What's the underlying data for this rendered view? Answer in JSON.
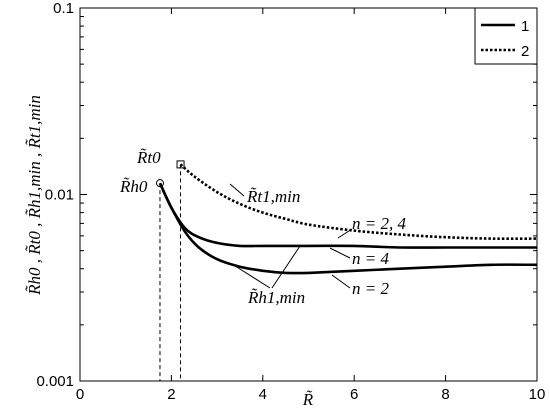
{
  "chart_data": {
    "type": "line",
    "title": "",
    "xlabel": "R̃",
    "ylabel": "R̃h0 , R̃t0 , R̃h1,min , R̃t1,min",
    "xlim": [
      0,
      10
    ],
    "ylim": [
      0.001,
      0.1
    ],
    "yscale": "log",
    "grid": false,
    "legend_position": "top-right",
    "x_ticks": [
      "0",
      "2",
      "4",
      "6",
      "8",
      "10"
    ],
    "y_ticks": [
      "0.001",
      "0.01",
      "0.1"
    ],
    "legend": [
      {
        "label": "1",
        "style": "solid"
      },
      {
        "label": "2",
        "style": "dotted"
      }
    ],
    "series": [
      {
        "name": "1",
        "style": "solid",
        "note": "n = 4",
        "x": [
          1.75,
          2.0,
          2.3,
          2.6,
          3.0,
          3.5,
          4.0,
          5.0,
          6.0,
          7.0,
          8.0,
          9.0,
          10.0
        ],
        "y": [
          0.0115,
          0.0085,
          0.0066,
          0.0059,
          0.0055,
          0.0053,
          0.0053,
          0.0053,
          0.0053,
          0.0052,
          0.0052,
          0.0052,
          0.0052
        ]
      },
      {
        "name": "1",
        "style": "solid",
        "note": "n = 2",
        "x": [
          1.75,
          2.0,
          2.3,
          2.6,
          3.0,
          3.5,
          4.0,
          4.5,
          5.0,
          6.0,
          7.0,
          8.0,
          9.0,
          10.0
        ],
        "y": [
          0.0115,
          0.0085,
          0.0063,
          0.0052,
          0.0045,
          0.0041,
          0.0039,
          0.0038,
          0.0038,
          0.0039,
          0.004,
          0.0041,
          0.0042,
          0.0042
        ]
      },
      {
        "name": "2",
        "style": "dotted",
        "note": "n = 2, 4",
        "x": [
          2.2,
          2.5,
          3.0,
          3.5,
          4.0,
          4.5,
          5.0,
          6.0,
          7.0,
          8.0,
          9.0,
          10.0
        ],
        "y": [
          0.0145,
          0.0125,
          0.0103,
          0.0089,
          0.008,
          0.0074,
          0.0069,
          0.0064,
          0.0061,
          0.0059,
          0.0058,
          0.0058
        ]
      }
    ],
    "markers": [
      {
        "label": "R̃h0",
        "shape": "circle",
        "x": 1.75,
        "y": 0.0115
      },
      {
        "label": "R̃t0",
        "shape": "square",
        "x": 2.2,
        "y": 0.0145
      }
    ],
    "annotations": [
      {
        "text": "R̃t1,min"
      },
      {
        "text": "n = 2, 4"
      },
      {
        "text": "n = 4"
      },
      {
        "text": "n = 2"
      },
      {
        "text": "R̃h1,min"
      }
    ]
  }
}
